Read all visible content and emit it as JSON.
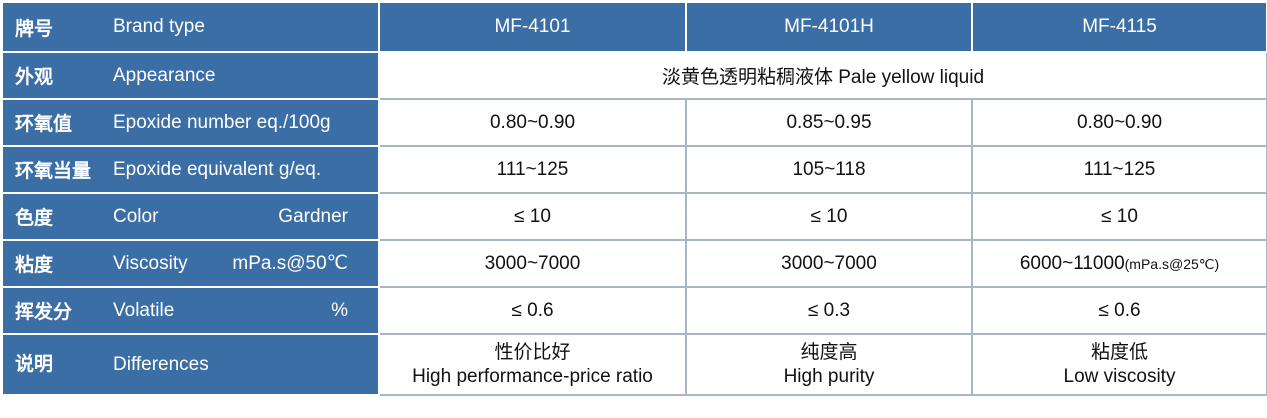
{
  "table": {
    "header": {
      "zh": "牌号",
      "en": "Brand type",
      "columns": [
        "MF-4101",
        "MF-4101H",
        "MF-4115"
      ]
    },
    "rows": [
      {
        "zh": "外观",
        "en": "Appearance",
        "cells": [
          {
            "text": "淡黄色透明粘稠液体  Pale yellow liquid"
          }
        ]
      },
      {
        "zh": "环氧值",
        "en": "Epoxide number eq./100g",
        "cells": [
          {
            "text": "0.80~0.90"
          },
          {
            "text": "0.85~0.95"
          },
          {
            "text": "0.80~0.90"
          }
        ]
      },
      {
        "zh": "环氧当量",
        "en": "Epoxide equivalent g/eq.",
        "cells": [
          {
            "text": "111~125"
          },
          {
            "text": "105~118"
          },
          {
            "text": "111~125"
          }
        ]
      },
      {
        "zh": "色度",
        "en": "Color",
        "unit": "Gardner",
        "cells": [
          {
            "text": "≤ 10"
          },
          {
            "text": "≤ 10"
          },
          {
            "text": "≤ 10"
          }
        ]
      },
      {
        "zh": "粘度",
        "en": "Viscosity",
        "unit": "mPa.s@50℃",
        "cells": [
          {
            "text": "3000~7000"
          },
          {
            "text": "3000~7000"
          },
          {
            "text": "6000~11000",
            "note": "(mPa.s@25℃)"
          }
        ]
      },
      {
        "zh": "挥发分",
        "en": "Volatile",
        "unit": "%",
        "cells": [
          {
            "text": "≤ 0.6"
          },
          {
            "text": "≤ 0.3"
          },
          {
            "text": "≤ 0.6"
          }
        ]
      },
      {
        "zh": "说明",
        "en": "Differences",
        "cells": [
          {
            "text": "性价比好",
            "line2": "High performance-price ratio"
          },
          {
            "text": "纯度高",
            "line2": "High purity"
          },
          {
            "text": "粘度低",
            "line2": "Low viscosity"
          }
        ]
      }
    ]
  }
}
